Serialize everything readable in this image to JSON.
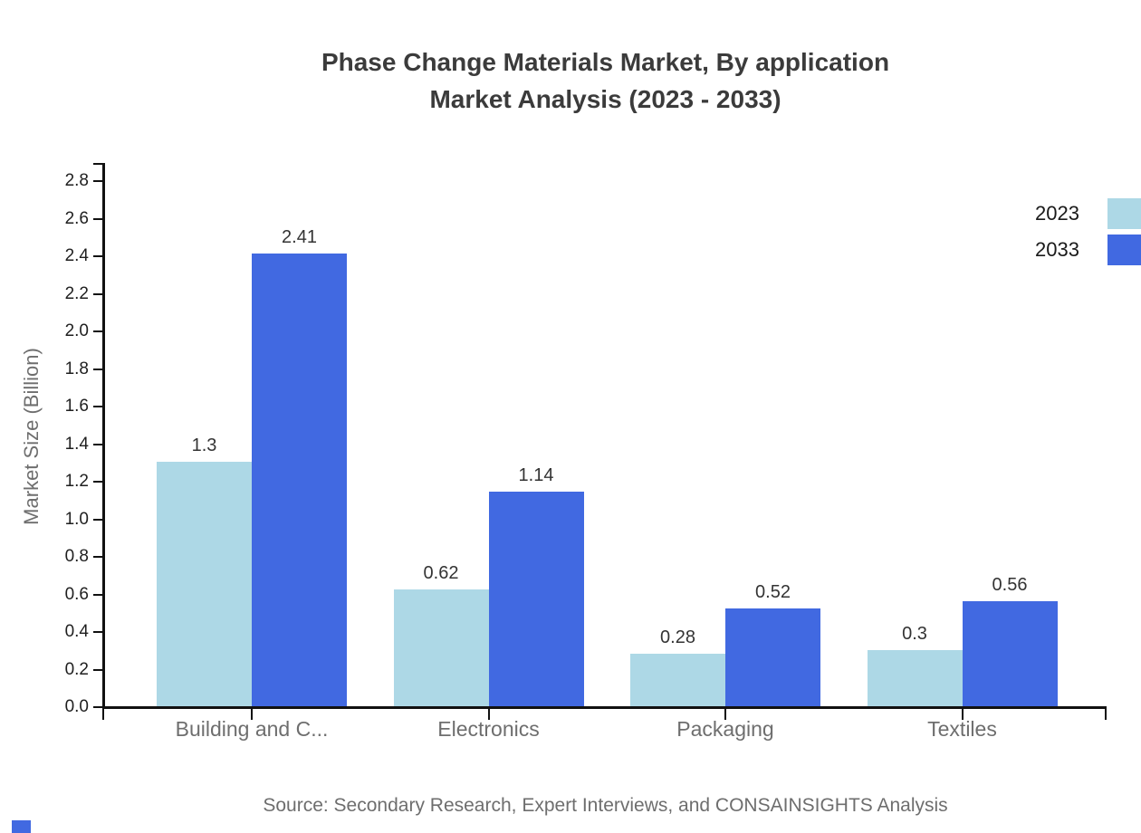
{
  "title": {
    "line1": "Phase Change Materials Market, By application",
    "line2": "Market Analysis (2023 - 2033)"
  },
  "legend": [
    {
      "label": "2023",
      "color": "#ADD8E6"
    },
    {
      "label": "2033",
      "color": "#4169E1"
    }
  ],
  "chart_data": {
    "type": "bar",
    "categories": [
      "Building and C...",
      "Electronics",
      "Packaging",
      "Textiles"
    ],
    "series": [
      {
        "name": "2023",
        "color": "#ADD8E6",
        "values": [
          1.3,
          0.62,
          0.28,
          0.3
        ],
        "display": [
          "1.3",
          "0.62",
          "0.28",
          "0.3"
        ]
      },
      {
        "name": "2033",
        "color": "#4169E1",
        "values": [
          2.41,
          1.14,
          0.52,
          0.56
        ],
        "display": [
          "2.41",
          "1.14",
          "0.52",
          "0.56"
        ]
      }
    ],
    "ylabel": "Market Size (Billion)",
    "xlabel": "",
    "ylim": [
      0,
      2.9
    ],
    "yticks": [
      "0.0",
      "0.2",
      "0.4",
      "0.6",
      "0.8",
      "1.0",
      "1.2",
      "1.4",
      "1.6",
      "1.8",
      "2.0",
      "2.2",
      "2.4",
      "2.6",
      "2.8"
    ],
    "grid": false,
    "legend_position": "top-right",
    "value_labels": true
  },
  "source_note": "Source: Secondary Research, Expert Interviews, and CONSAINSIGHTS Analysis",
  "colors": {
    "series_2023": "#ADD8E6",
    "series_2033": "#4169E1",
    "axis": "#111111",
    "title_text": "#3B3B3B",
    "muted_text": "#6E6E6E",
    "brand_box": "#4169E1"
  }
}
